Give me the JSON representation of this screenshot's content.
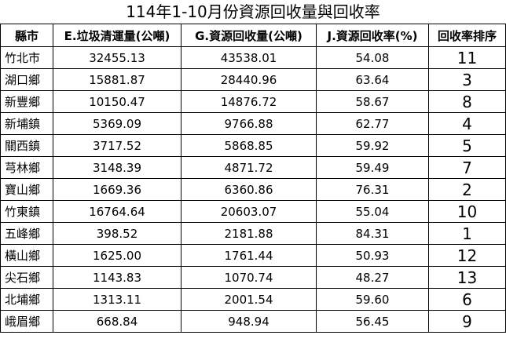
{
  "title": "114年1-10月份資源回收量與回收率",
  "table": {
    "columns": [
      "縣市",
      "E.垃圾清運量(公噸)",
      "G.資源回收量(公噸)",
      "J.資源回收率(%)",
      "回收率排序"
    ],
    "rows": [
      [
        "竹北市",
        "32455.13",
        "43538.01",
        "54.08",
        "11"
      ],
      [
        "湖口鄉",
        "15881.87",
        "28440.96",
        "63.64",
        "3"
      ],
      [
        "新豐鄉",
        "10150.47",
        "14876.72",
        "58.67",
        "8"
      ],
      [
        "新埔鎮",
        "5369.09",
        "9766.88",
        "62.77",
        "4"
      ],
      [
        "關西鎮",
        "3717.52",
        "5868.85",
        "59.92",
        "5"
      ],
      [
        "芎林鄉",
        "3148.39",
        "4871.72",
        "59.49",
        "7"
      ],
      [
        "寶山鄉",
        "1669.36",
        "6360.86",
        "76.31",
        "2"
      ],
      [
        "竹東鎮",
        "16764.64",
        "20603.07",
        "55.04",
        "10"
      ],
      [
        "五峰鄉",
        "398.52",
        "2181.88",
        "84.31",
        "1"
      ],
      [
        "橫山鄉",
        "1625.00",
        "1761.44",
        "50.93",
        "12"
      ],
      [
        "尖石鄉",
        "1143.83",
        "1070.74",
        "48.27",
        "13"
      ],
      [
        "北埔鄉",
        "1313.11",
        "2001.54",
        "59.60",
        "6"
      ],
      [
        "峨眉鄉",
        "668.84",
        "948.94",
        "56.45",
        "9"
      ]
    ]
  },
  "chart_data": {
    "type": "table",
    "title": "114年1-10月份資源回收量與回收率",
    "categories": [
      "竹北市",
      "湖口鄉",
      "新豐鄉",
      "新埔鎮",
      "關西鎮",
      "芎林鄉",
      "寶山鄉",
      "竹東鎮",
      "五峰鄉",
      "橫山鄉",
      "尖石鄉",
      "北埔鄉",
      "峨眉鄉"
    ],
    "series": [
      {
        "name": "E.垃圾清運量(公噸)",
        "values": [
          32455.13,
          15881.87,
          10150.47,
          5369.09,
          3717.52,
          3148.39,
          1669.36,
          16764.64,
          398.52,
          1625.0,
          1143.83,
          1313.11,
          668.84
        ]
      },
      {
        "name": "G.資源回收量(公噸)",
        "values": [
          43538.01,
          28440.96,
          14876.72,
          9766.88,
          5868.85,
          4871.72,
          6360.86,
          20603.07,
          2181.88,
          1761.44,
          1070.74,
          2001.54,
          948.94
        ]
      },
      {
        "name": "J.資源回收率(%)",
        "values": [
          54.08,
          63.64,
          58.67,
          62.77,
          59.92,
          59.49,
          76.31,
          55.04,
          84.31,
          50.93,
          48.27,
          59.6,
          56.45
        ]
      },
      {
        "name": "回收率排序",
        "values": [
          11,
          3,
          8,
          4,
          5,
          7,
          2,
          10,
          1,
          12,
          13,
          6,
          9
        ]
      }
    ]
  }
}
